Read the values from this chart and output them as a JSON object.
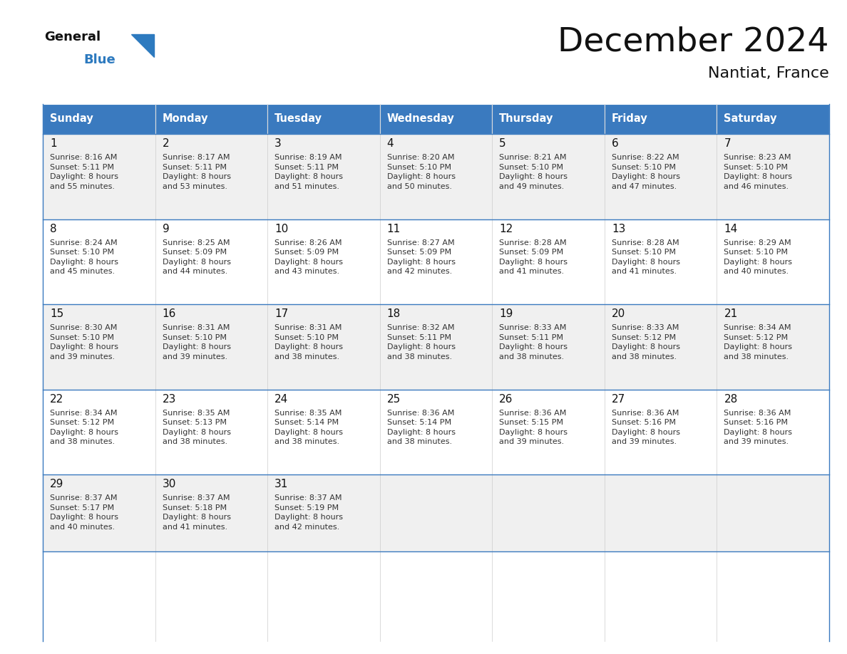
{
  "title": "December 2024",
  "subtitle": "Nantiat, France",
  "header_color": "#3a7abf",
  "header_text_color": "#ffffff",
  "days_of_week": [
    "Sunday",
    "Monday",
    "Tuesday",
    "Wednesday",
    "Thursday",
    "Friday",
    "Saturday"
  ],
  "bg_color_light": "#f0f0f0",
  "bg_color_white": "#ffffff",
  "border_color": "#3a7abf",
  "text_color": "#333333",
  "calendar_data": [
    [
      {
        "day": 1,
        "sunrise": "8:16 AM",
        "sunset": "5:11 PM",
        "daylight": "8 hours and 55 minutes."
      },
      {
        "day": 2,
        "sunrise": "8:17 AM",
        "sunset": "5:11 PM",
        "daylight": "8 hours and 53 minutes."
      },
      {
        "day": 3,
        "sunrise": "8:19 AM",
        "sunset": "5:11 PM",
        "daylight": "8 hours and 51 minutes."
      },
      {
        "day": 4,
        "sunrise": "8:20 AM",
        "sunset": "5:10 PM",
        "daylight": "8 hours and 50 minutes."
      },
      {
        "day": 5,
        "sunrise": "8:21 AM",
        "sunset": "5:10 PM",
        "daylight": "8 hours and 49 minutes."
      },
      {
        "day": 6,
        "sunrise": "8:22 AM",
        "sunset": "5:10 PM",
        "daylight": "8 hours and 47 minutes."
      },
      {
        "day": 7,
        "sunrise": "8:23 AM",
        "sunset": "5:10 PM",
        "daylight": "8 hours and 46 minutes."
      }
    ],
    [
      {
        "day": 8,
        "sunrise": "8:24 AM",
        "sunset": "5:10 PM",
        "daylight": "8 hours and 45 minutes."
      },
      {
        "day": 9,
        "sunrise": "8:25 AM",
        "sunset": "5:09 PM",
        "daylight": "8 hours and 44 minutes."
      },
      {
        "day": 10,
        "sunrise": "8:26 AM",
        "sunset": "5:09 PM",
        "daylight": "8 hours and 43 minutes."
      },
      {
        "day": 11,
        "sunrise": "8:27 AM",
        "sunset": "5:09 PM",
        "daylight": "8 hours and 42 minutes."
      },
      {
        "day": 12,
        "sunrise": "8:28 AM",
        "sunset": "5:09 PM",
        "daylight": "8 hours and 41 minutes."
      },
      {
        "day": 13,
        "sunrise": "8:28 AM",
        "sunset": "5:10 PM",
        "daylight": "8 hours and 41 minutes."
      },
      {
        "day": 14,
        "sunrise": "8:29 AM",
        "sunset": "5:10 PM",
        "daylight": "8 hours and 40 minutes."
      }
    ],
    [
      {
        "day": 15,
        "sunrise": "8:30 AM",
        "sunset": "5:10 PM",
        "daylight": "8 hours and 39 minutes."
      },
      {
        "day": 16,
        "sunrise": "8:31 AM",
        "sunset": "5:10 PM",
        "daylight": "8 hours and 39 minutes."
      },
      {
        "day": 17,
        "sunrise": "8:31 AM",
        "sunset": "5:10 PM",
        "daylight": "8 hours and 38 minutes."
      },
      {
        "day": 18,
        "sunrise": "8:32 AM",
        "sunset": "5:11 PM",
        "daylight": "8 hours and 38 minutes."
      },
      {
        "day": 19,
        "sunrise": "8:33 AM",
        "sunset": "5:11 PM",
        "daylight": "8 hours and 38 minutes."
      },
      {
        "day": 20,
        "sunrise": "8:33 AM",
        "sunset": "5:12 PM",
        "daylight": "8 hours and 38 minutes."
      },
      {
        "day": 21,
        "sunrise": "8:34 AM",
        "sunset": "5:12 PM",
        "daylight": "8 hours and 38 minutes."
      }
    ],
    [
      {
        "day": 22,
        "sunrise": "8:34 AM",
        "sunset": "5:12 PM",
        "daylight": "8 hours and 38 minutes."
      },
      {
        "day": 23,
        "sunrise": "8:35 AM",
        "sunset": "5:13 PM",
        "daylight": "8 hours and 38 minutes."
      },
      {
        "day": 24,
        "sunrise": "8:35 AM",
        "sunset": "5:14 PM",
        "daylight": "8 hours and 38 minutes."
      },
      {
        "day": 25,
        "sunrise": "8:36 AM",
        "sunset": "5:14 PM",
        "daylight": "8 hours and 38 minutes."
      },
      {
        "day": 26,
        "sunrise": "8:36 AM",
        "sunset": "5:15 PM",
        "daylight": "8 hours and 39 minutes."
      },
      {
        "day": 27,
        "sunrise": "8:36 AM",
        "sunset": "5:16 PM",
        "daylight": "8 hours and 39 minutes."
      },
      {
        "day": 28,
        "sunrise": "8:36 AM",
        "sunset": "5:16 PM",
        "daylight": "8 hours and 39 minutes."
      }
    ],
    [
      {
        "day": 29,
        "sunrise": "8:37 AM",
        "sunset": "5:17 PM",
        "daylight": "8 hours and 40 minutes."
      },
      {
        "day": 30,
        "sunrise": "8:37 AM",
        "sunset": "5:18 PM",
        "daylight": "8 hours and 41 minutes."
      },
      {
        "day": 31,
        "sunrise": "8:37 AM",
        "sunset": "5:19 PM",
        "daylight": "8 hours and 42 minutes."
      },
      null,
      null,
      null,
      null
    ]
  ]
}
